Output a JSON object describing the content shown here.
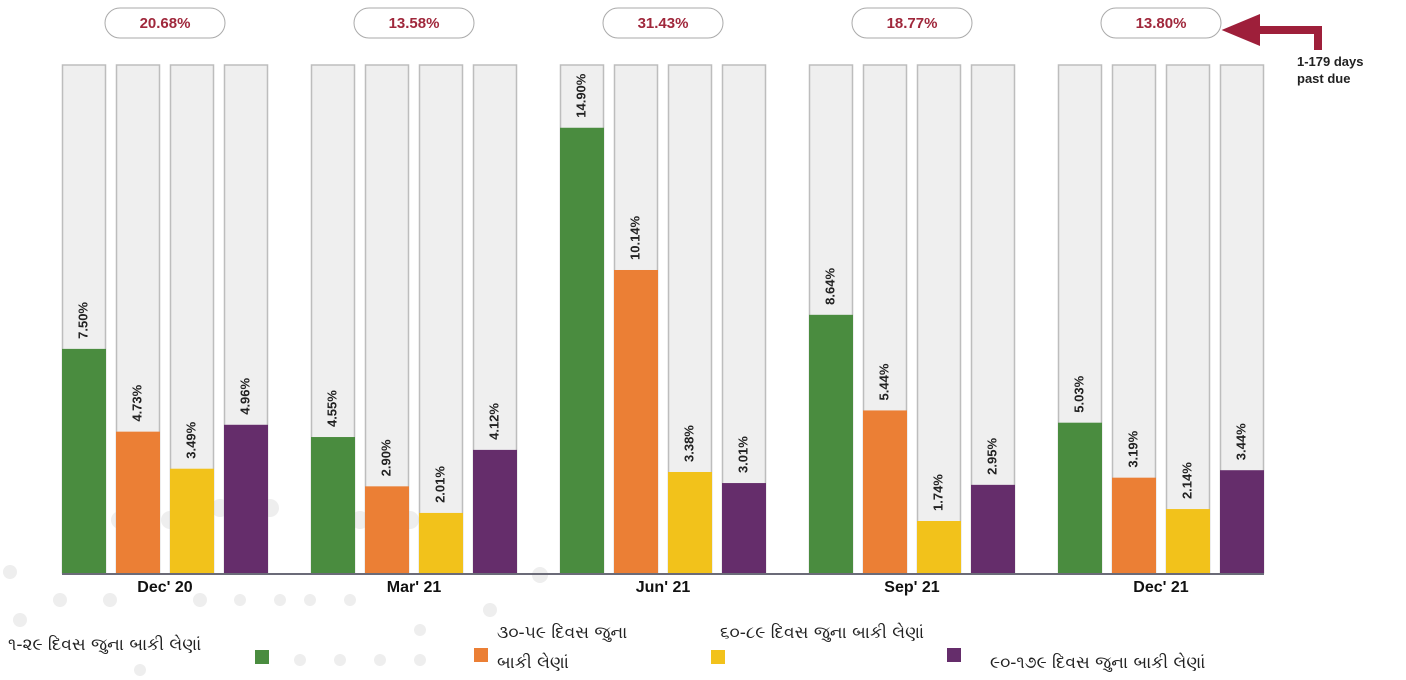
{
  "chart_data": {
    "type": "bar",
    "categories": [
      "Dec' 20",
      "Mar' 21",
      "Jun' 21",
      "Sep' 21",
      "Dec' 21"
    ],
    "series": [
      {
        "name": "૧-૨૯ દિવસ જુના બાકી લેણાં",
        "color": "#4a8c3f",
        "values": [
          7.5,
          4.55,
          14.9,
          8.64,
          5.03
        ],
        "value_labels": [
          "7.50%",
          "4.55%",
          "14.90%",
          "8.64%",
          "5.03%"
        ]
      },
      {
        "name": "૩૦-૫૯ દિવસ જુના બાકી લેણાં",
        "color": "#eb7f35",
        "values": [
          4.73,
          2.9,
          10.14,
          5.44,
          3.19
        ],
        "value_labels": [
          "4.73%",
          "2.90%",
          "10.14%",
          "5.44%",
          "3.19%"
        ]
      },
      {
        "name": "૬૦-૮૯ દિવસ જુના બાકી લેણાં",
        "color": "#f2c21b",
        "values": [
          3.49,
          2.01,
          3.38,
          1.74,
          2.14
        ],
        "value_labels": [
          "3.49%",
          "2.01%",
          "3.38%",
          "1.74%",
          "2.14%"
        ]
      },
      {
        "name": "૯૦-૧૭૯ દિવસ જુના બાકી લેણાં",
        "color": "#652d6b",
        "values": [
          4.96,
          4.12,
          3.01,
          2.95,
          3.44
        ],
        "value_labels": [
          "4.96%",
          "4.12%",
          "3.01%",
          "2.95%",
          "3.44%"
        ]
      }
    ],
    "totals": {
      "values": [
        20.68,
        13.58,
        31.43,
        18.77,
        13.8
      ],
      "value_labels": [
        "20.68%",
        "13.58%",
        "31.43%",
        "18.77%",
        "13.80%"
      ]
    },
    "annotation": "1-179 days past due",
    "ylim": [
      0,
      17
    ]
  }
}
